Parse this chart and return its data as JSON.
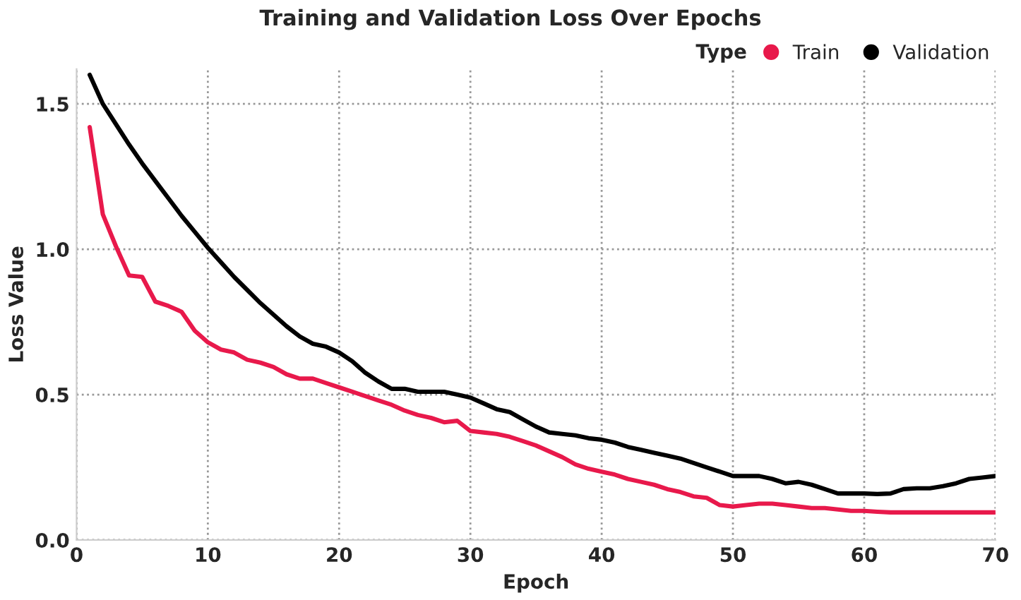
{
  "chart_data": {
    "type": "line",
    "title": "Training and Validation Loss Over Epochs",
    "xlabel": "Epoch",
    "ylabel": "Loss Value",
    "legend_title": "Type",
    "legend": "top right",
    "grid": true,
    "marker": "none",
    "line_style": "solid",
    "x": [
      1,
      2,
      3,
      4,
      5,
      6,
      7,
      8,
      9,
      10,
      11,
      12,
      13,
      14,
      15,
      16,
      17,
      18,
      19,
      20,
      21,
      22,
      23,
      24,
      25,
      26,
      27,
      28,
      29,
      30,
      31,
      32,
      33,
      34,
      35,
      36,
      37,
      38,
      39,
      40,
      41,
      42,
      43,
      44,
      45,
      46,
      47,
      48,
      49,
      50,
      51,
      52,
      53,
      54,
      55,
      56,
      57,
      58,
      59,
      60,
      61,
      62,
      63,
      64,
      65,
      66,
      67,
      68,
      69,
      70
    ],
    "xlim": [
      0,
      70
    ],
    "xticks": [
      0,
      10,
      20,
      30,
      40,
      50,
      60,
      70
    ],
    "ylim": [
      0,
      1.62
    ],
    "yticks": [
      {
        "value": 0,
        "label": "0.0"
      },
      {
        "value": 0.5,
        "label": "0.5"
      },
      {
        "value": 1,
        "label": "1.0"
      },
      {
        "value": 1.5,
        "label": "1.5"
      }
    ],
    "series": [
      {
        "name": "Train",
        "color": "#e8194b",
        "values": [
          1.42,
          1.12,
          1.01,
          0.91,
          0.905,
          0.82,
          0.805,
          0.785,
          0.72,
          0.68,
          0.655,
          0.645,
          0.62,
          0.61,
          0.595,
          0.57,
          0.555,
          0.555,
          0.54,
          0.525,
          0.51,
          0.495,
          0.48,
          0.465,
          0.445,
          0.43,
          0.42,
          0.405,
          0.41,
          0.375,
          0.37,
          0.365,
          0.355,
          0.34,
          0.325,
          0.305,
          0.285,
          0.26,
          0.245,
          0.235,
          0.225,
          0.21,
          0.2,
          0.19,
          0.175,
          0.165,
          0.15,
          0.145,
          0.12,
          0.115,
          0.12,
          0.125,
          0.125,
          0.12,
          0.115,
          0.11,
          0.11,
          0.105,
          0.1,
          0.1,
          0.097,
          0.095,
          0.095,
          0.095,
          0.095,
          0.095,
          0.095,
          0.095,
          0.095,
          0.095
        ]
      },
      {
        "name": "Validation",
        "color": "#000000",
        "values": [
          1.6,
          1.5,
          1.43,
          1.36,
          1.295,
          1.235,
          1.175,
          1.115,
          1.06,
          1.005,
          0.955,
          0.905,
          0.86,
          0.815,
          0.775,
          0.735,
          0.7,
          0.675,
          0.665,
          0.645,
          0.615,
          0.575,
          0.545,
          0.52,
          0.52,
          0.51,
          0.51,
          0.51,
          0.5,
          0.49,
          0.47,
          0.45,
          0.44,
          0.415,
          0.39,
          0.37,
          0.365,
          0.36,
          0.35,
          0.345,
          0.335,
          0.32,
          0.31,
          0.3,
          0.29,
          0.28,
          0.265,
          0.25,
          0.235,
          0.22,
          0.22,
          0.22,
          0.21,
          0.195,
          0.2,
          0.19,
          0.175,
          0.16,
          0.16,
          0.16,
          0.158,
          0.16,
          0.175,
          0.178,
          0.178,
          0.185,
          0.195,
          0.21,
          0.215,
          0.22
        ]
      }
    ]
  }
}
